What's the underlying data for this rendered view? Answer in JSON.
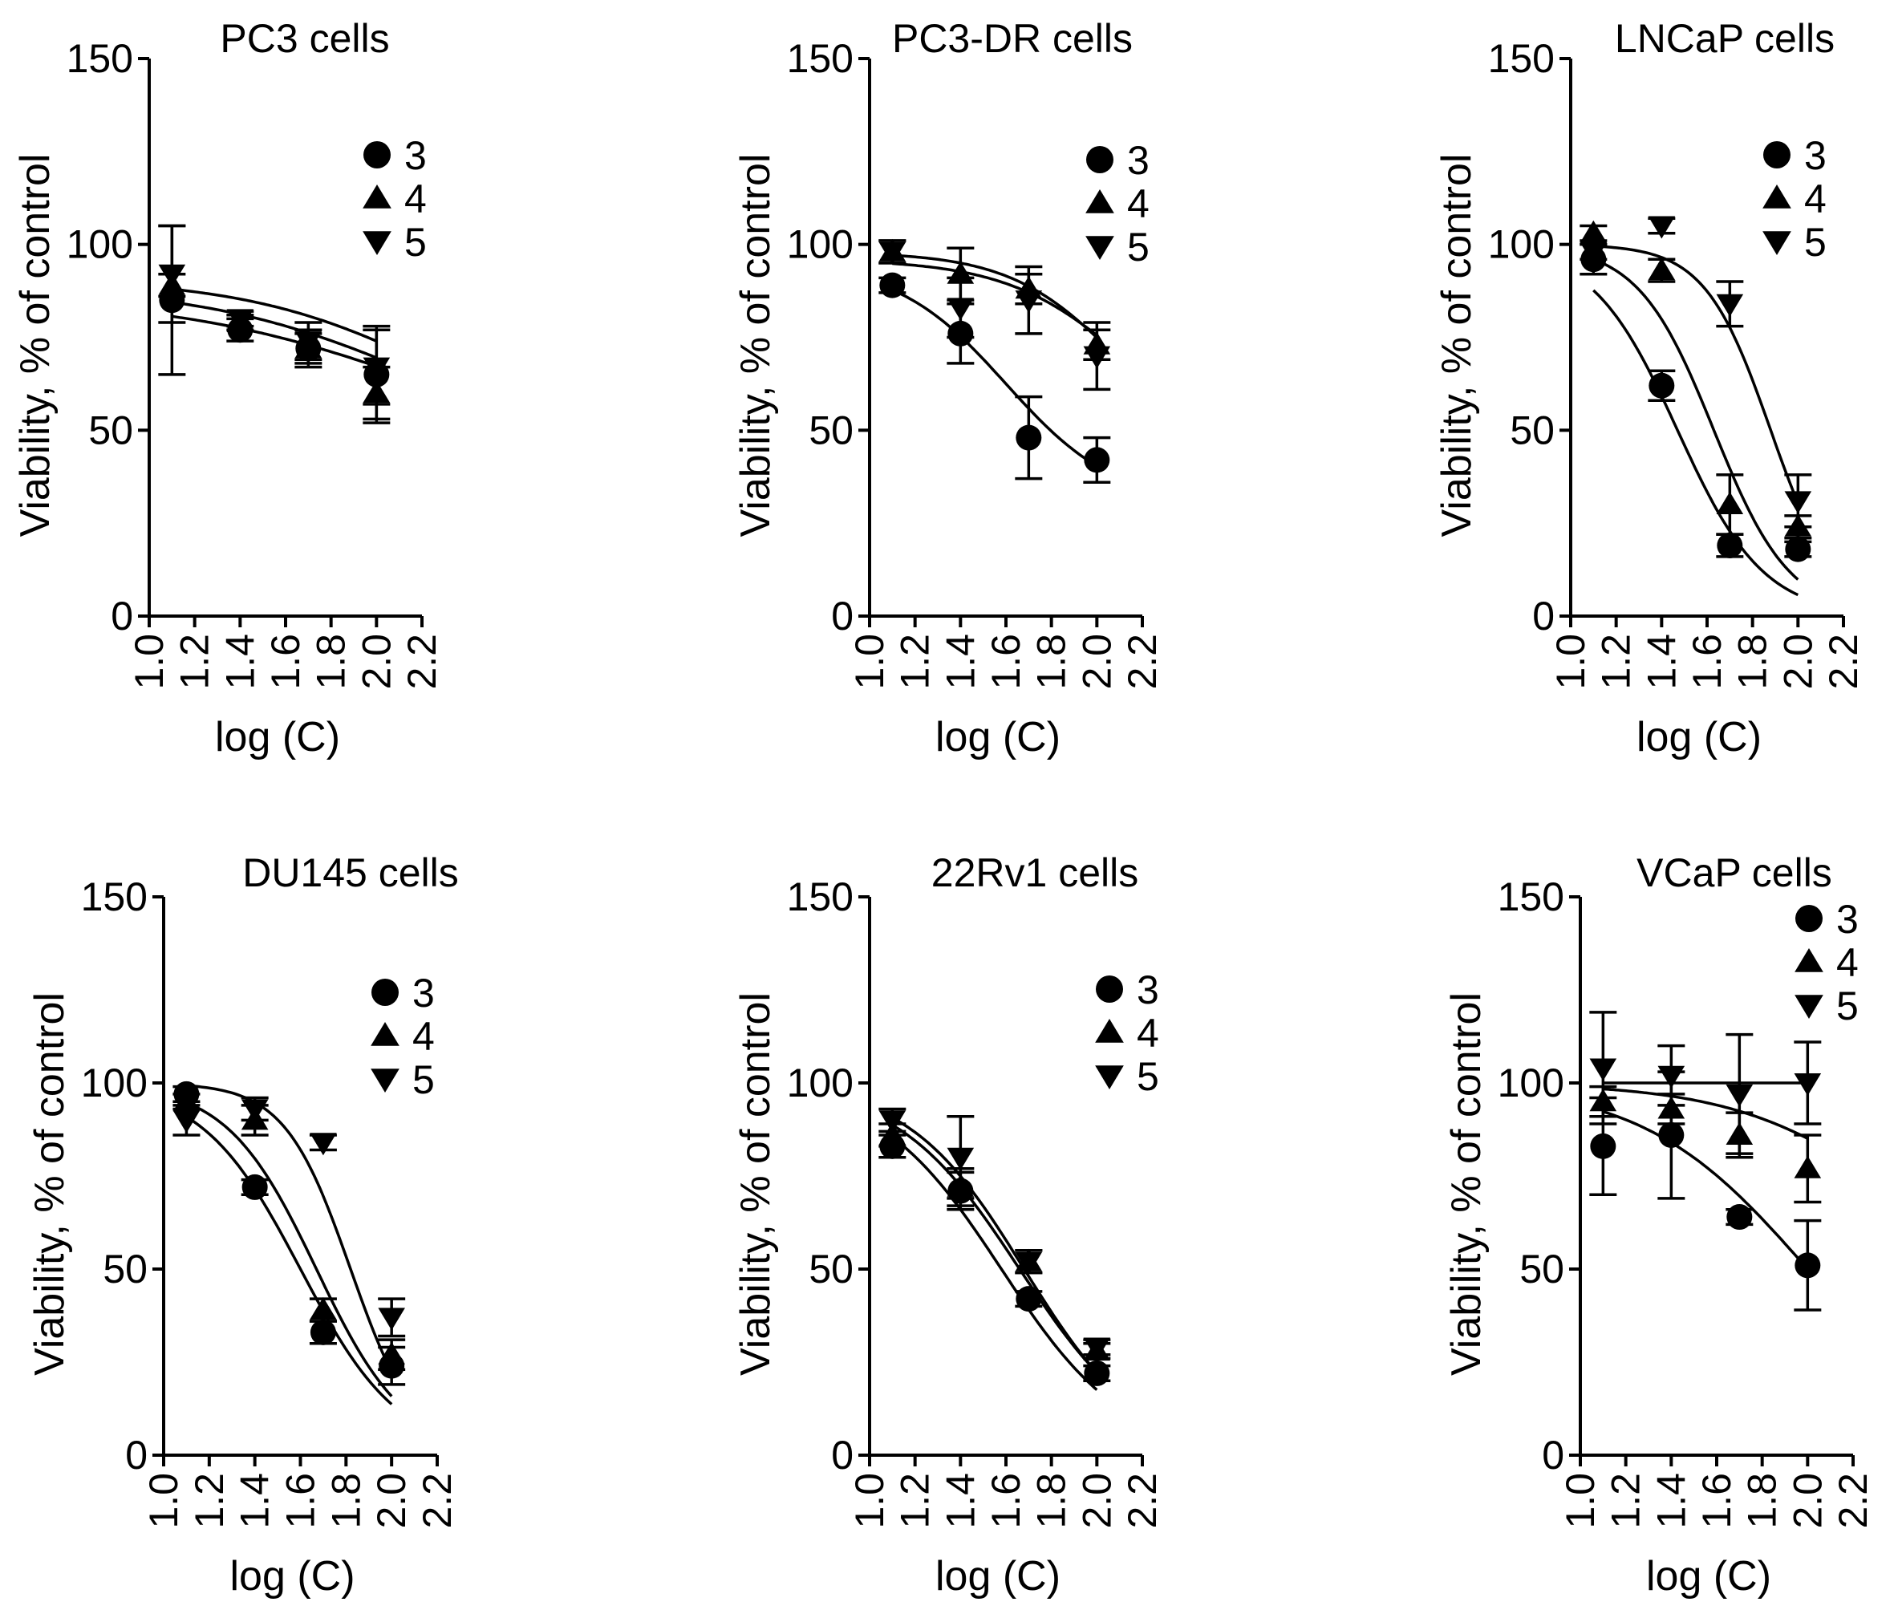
{
  "figure": {
    "colors": {
      "ink": "#000000",
      "background": "#ffffff"
    },
    "x_tick_labels": [
      "1.0",
      "1.2",
      "1.4",
      "1.6",
      "1.8",
      "2.0",
      "2.2"
    ],
    "y_tick_labels": [
      "0",
      "50",
      "100",
      "150"
    ],
    "xlabel": "log (C)",
    "ylabel": "Viability, % of control",
    "legend": [
      {
        "label": "3",
        "marker": "circle"
      },
      {
        "label": "4",
        "marker": "triangle-up"
      },
      {
        "label": "5",
        "marker": "triangle-down"
      }
    ]
  },
  "chart_data": [
    {
      "type": "scatter",
      "title": "PC3 cells",
      "xlabel": "log (C)",
      "ylabel": "Viability, % of control",
      "xlim": [
        1.0,
        2.2
      ],
      "ylim": [
        0,
        150
      ],
      "x": [
        1.1,
        1.4,
        1.7,
        2.0
      ],
      "series": [
        {
          "name": "3",
          "marker": "circle",
          "values": [
            85,
            77,
            72,
            65
          ],
          "errors": [
            20,
            3,
            5,
            13
          ],
          "fit": {
            "top": 86,
            "bottom": 40,
            "logic50": 2.2,
            "hill": 0.8
          }
        },
        {
          "name": "4",
          "marker": "triangle-up",
          "values": [
            89,
            79,
            72,
            60
          ],
          "errors": [
            3,
            2,
            4,
            7
          ],
          "fit": {
            "top": 89,
            "bottom": 40,
            "logic50": 2.2,
            "hill": 0.9
          }
        },
        {
          "name": "5",
          "marker": "triangle-down",
          "values": [
            92,
            80,
            74,
            67
          ],
          "errors": [
            13,
            2,
            5,
            10
          ],
          "fit": {
            "top": 91,
            "bottom": 40,
            "logic50": 2.3,
            "hill": 1.0
          }
        }
      ]
    },
    {
      "type": "scatter",
      "title": "PC3-DR cells",
      "xlabel": "log (C)",
      "ylabel": "Viability, % of control",
      "xlim": [
        1.0,
        2.2
      ],
      "ylim": [
        0,
        150
      ],
      "x": [
        1.1,
        1.4,
        1.7,
        2.0
      ],
      "series": [
        {
          "name": "3",
          "marker": "circle",
          "values": [
            89,
            76,
            48,
            42
          ],
          "errors": [
            2,
            8,
            11,
            6
          ],
          "fit": {
            "top": 95,
            "bottom": 30,
            "logic50": 1.6,
            "hill": 1.8
          }
        },
        {
          "name": "4",
          "marker": "triangle-up",
          "values": [
            98,
            92,
            88,
            73
          ],
          "errors": [
            3,
            7,
            4,
            4
          ],
          "fit": {
            "top": 98,
            "bottom": 40,
            "logic50": 2.1,
            "hill": 1.8
          }
        },
        {
          "name": "5",
          "marker": "triangle-down",
          "values": [
            98,
            83,
            85,
            70
          ],
          "errors": [
            3,
            8,
            9,
            9
          ],
          "fit": {
            "top": 96,
            "bottom": 40,
            "logic50": 2.15,
            "hill": 1.6
          }
        }
      ]
    },
    {
      "type": "scatter",
      "title": "LNCaP cells",
      "xlabel": "log (C)",
      "ylabel": "Viability, % of control",
      "xlim": [
        1.0,
        2.2
      ],
      "ylim": [
        0,
        150
      ],
      "x": [
        1.1,
        1.4,
        1.7,
        2.0
      ],
      "series": [
        {
          "name": "3",
          "marker": "circle",
          "values": [
            96,
            62,
            19,
            18
          ],
          "errors": [
            4,
            4,
            3,
            2
          ],
          "fit": {
            "top": 100,
            "bottom": 0,
            "logic50": 1.47,
            "hill": 2.3
          }
        },
        {
          "name": "4",
          "marker": "triangle-up",
          "values": [
            103,
            93,
            30,
            24
          ],
          "errors": [
            2,
            3,
            8,
            3
          ],
          "fit": {
            "top": 100,
            "bottom": 0,
            "logic50": 1.63,
            "hill": 2.6
          }
        },
        {
          "name": "5",
          "marker": "triangle-down",
          "values": [
            98,
            105,
            84,
            31
          ],
          "errors": [
            2,
            2,
            6,
            7
          ],
          "fit": {
            "top": 100,
            "bottom": 0,
            "logic50": 1.88,
            "hill": 3.0
          }
        }
      ]
    },
    {
      "type": "scatter",
      "title": "DU145 cells",
      "xlabel": "log (C)",
      "ylabel": "Viability, % of control",
      "xlim": [
        1.0,
        2.2
      ],
      "ylim": [
        0,
        150
      ],
      "x": [
        1.1,
        1.4,
        1.7,
        2.0
      ],
      "series": [
        {
          "name": "3",
          "marker": "circle",
          "values": [
            97,
            72,
            33,
            24
          ],
          "errors": [
            2,
            2,
            3,
            5
          ],
          "fit": {
            "top": 100,
            "bottom": 0,
            "logic50": 1.6,
            "hill": 2.0
          }
        },
        {
          "name": "4",
          "marker": "triangle-up",
          "values": [
            95,
            90,
            39,
            27
          ],
          "errors": [
            2,
            4,
            3,
            4
          ],
          "fit": {
            "top": 100,
            "bottom": 0,
            "logic50": 1.67,
            "hill": 2.2
          }
        },
        {
          "name": "5",
          "marker": "triangle-down",
          "values": [
            90,
            93,
            84,
            37
          ],
          "errors": [
            4,
            3,
            2,
            5
          ],
          "fit": {
            "top": 100,
            "bottom": 0,
            "logic50": 1.82,
            "hill": 3.0
          }
        }
      ]
    },
    {
      "type": "scatter",
      "title": "22Rv1 cells",
      "xlabel": "log (C)",
      "ylabel": "Viability, % of control",
      "xlim": [
        1.0,
        2.2
      ],
      "ylim": [
        0,
        150
      ],
      "x": [
        1.1,
        1.4,
        1.7,
        2.0
      ],
      "series": [
        {
          "name": "3",
          "marker": "circle",
          "values": [
            83,
            71,
            42,
            22
          ],
          "errors": [
            3,
            5,
            2,
            2
          ],
          "fit": {
            "top": 100,
            "bottom": 0,
            "logic50": 1.58,
            "hill": 1.6
          }
        },
        {
          "name": "4",
          "marker": "triangle-up",
          "values": [
            86,
            72,
            52,
            28
          ],
          "errors": [
            3,
            5,
            3,
            2
          ],
          "fit": {
            "top": 100,
            "bottom": 0,
            "logic50": 1.66,
            "hill": 1.6
          }
        },
        {
          "name": "5",
          "marker": "triangle-down",
          "values": [
            90,
            80,
            52,
            29
          ],
          "errors": [
            3,
            11,
            3,
            2
          ],
          "fit": {
            "top": 100,
            "bottom": 0,
            "logic50": 1.68,
            "hill": 1.7
          }
        }
      ]
    },
    {
      "type": "scatter",
      "title": "VCaP cells",
      "xlabel": "log (C)",
      "ylabel": "Viability, % of control",
      "xlim": [
        1.0,
        2.2
      ],
      "ylim": [
        0,
        150
      ],
      "x": [
        1.1,
        1.4,
        1.7,
        2.0
      ],
      "series": [
        {
          "name": "3",
          "marker": "circle",
          "values": [
            83,
            86,
            64,
            51
          ],
          "errors": [
            13,
            17,
            2,
            12
          ],
          "fit": {
            "top": 100,
            "bottom": 0,
            "logic50": 2.0,
            "hill": 1.2
          }
        },
        {
          "name": "4",
          "marker": "triangle-up",
          "values": [
            95,
            93,
            86,
            77
          ],
          "errors": [
            4,
            4,
            6,
            9
          ],
          "fit": {
            "top": 100,
            "bottom": 40,
            "logic50": 2.4,
            "hill": 1.2
          }
        },
        {
          "name": "5",
          "marker": "triangle-down",
          "values": [
            104,
            102,
            97,
            100
          ],
          "errors": [
            15,
            8,
            16,
            11
          ],
          "fit": {
            "top": 100,
            "bottom": 100,
            "logic50": 2.0,
            "hill": 1.0
          }
        }
      ]
    }
  ]
}
